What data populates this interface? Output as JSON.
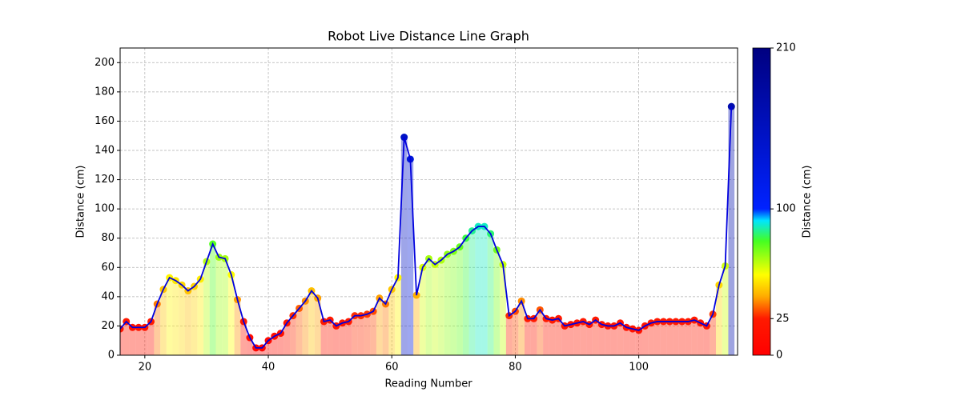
{
  "chart_data": {
    "type": "line",
    "title": "Robot Live Distance Line Graph",
    "x_label": "Reading Number",
    "y_label": "Distance (cm)",
    "x": [
      16,
      17,
      18,
      19,
      20,
      21,
      22,
      23,
      24,
      25,
      26,
      27,
      28,
      29,
      30,
      31,
      32,
      33,
      34,
      35,
      36,
      37,
      38,
      39,
      40,
      41,
      42,
      43,
      44,
      45,
      46,
      47,
      48,
      49,
      50,
      51,
      52,
      53,
      54,
      55,
      56,
      57,
      58,
      59,
      60,
      61,
      62,
      63,
      64,
      65,
      66,
      67,
      68,
      69,
      70,
      71,
      72,
      73,
      74,
      75,
      76,
      77,
      78,
      79,
      80,
      81,
      82,
      83,
      84,
      85,
      86,
      87,
      88,
      89,
      90,
      91,
      92,
      93,
      94,
      95,
      96,
      97,
      98,
      99,
      100,
      101,
      102,
      103,
      104,
      105,
      106,
      107,
      108,
      109,
      110,
      111,
      112,
      113,
      114,
      115
    ],
    "values": [
      18,
      23,
      19,
      19,
      19,
      23,
      35,
      45,
      53,
      51,
      48,
      44,
      47,
      52,
      64,
      76,
      67,
      66,
      55,
      38,
      23,
      12,
      5,
      5,
      10,
      13,
      15,
      22,
      27,
      32,
      37,
      44,
      39,
      23,
      24,
      20,
      22,
      23,
      27,
      27,
      28,
      30,
      39,
      35,
      45,
      53,
      149,
      134,
      41,
      60,
      66,
      62,
      65,
      69,
      71,
      74,
      80,
      85,
      88,
      88,
      83,
      72,
      62,
      27,
      30,
      37,
      25,
      25,
      31,
      25,
      24,
      25,
      20,
      21,
      22,
      23,
      21,
      24,
      21,
      20,
      20,
      22,
      19,
      18,
      17,
      20,
      22,
      23,
      23,
      23,
      23,
      23,
      23,
      24,
      22,
      20,
      28,
      48,
      61,
      170
    ],
    "line_color": "#0000dd",
    "xlim": [
      16,
      116
    ],
    "ylim": [
      0,
      210
    ],
    "xticks": [
      20,
      40,
      60,
      80,
      100
    ],
    "yticks": [
      0,
      20,
      40,
      60,
      80,
      100,
      120,
      140,
      160,
      180,
      200
    ],
    "grid": true,
    "colorbar": {
      "label": "Distance (cm)",
      "lim": [
        0,
        210
      ],
      "ticks": [
        0,
        25,
        100,
        210
      ],
      "colormap": [
        {
          "value": 0,
          "color": "#ff0000"
        },
        {
          "value": 25,
          "color": "#ff1a00"
        },
        {
          "value": 40,
          "color": "#ffaa00"
        },
        {
          "value": 55,
          "color": "#ffff00"
        },
        {
          "value": 78,
          "color": "#44ff22"
        },
        {
          "value": 92,
          "color": "#00e5ff"
        },
        {
          "value": 100,
          "color": "#0022ff"
        },
        {
          "value": 210,
          "color": "#000080"
        }
      ]
    }
  }
}
